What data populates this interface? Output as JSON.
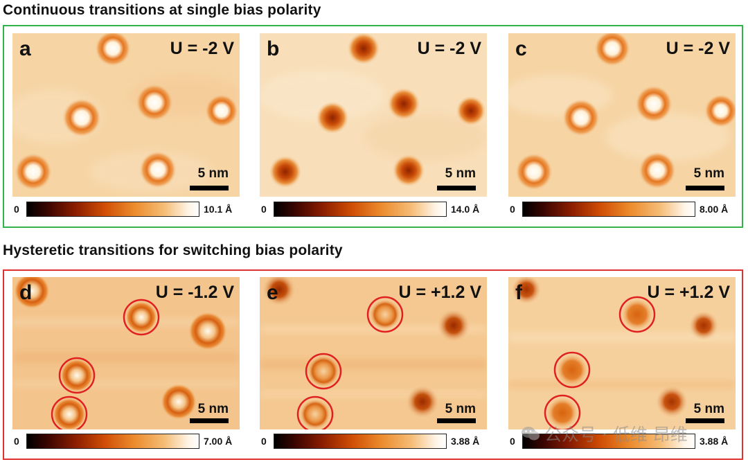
{
  "sections": [
    {
      "title": "Continuous transitions at single bias polarity",
      "frame_color": "#2fb34a"
    },
    {
      "title": "Hysteretic transitions for switching bias polarity",
      "frame_color": "#e03131"
    }
  ],
  "panels": [
    {
      "label": "a",
      "bias": "U = -2 V",
      "scale": "5 nm",
      "cbar_min": "0",
      "cbar_max": "10.1 Å"
    },
    {
      "label": "b",
      "bias": "U = -2 V",
      "scale": "5 nm",
      "cbar_min": "0",
      "cbar_max": "14.0 Å"
    },
    {
      "label": "c",
      "bias": "U = -2 V",
      "scale": "5 nm",
      "cbar_min": "0",
      "cbar_max": "8.00 Å"
    },
    {
      "label": "d",
      "bias": "U = -1.2 V",
      "scale": "5 nm",
      "cbar_min": "0",
      "cbar_max": "7.00 Å"
    },
    {
      "label": "e",
      "bias": "U = +1.2 V",
      "scale": "5 nm",
      "cbar_min": "0",
      "cbar_max": "3.88 Å"
    },
    {
      "label": "f",
      "bias": "U = +1.2 V",
      "scale": "5 nm",
      "cbar_min": "0",
      "cbar_max": "3.88 Å"
    }
  ],
  "watermark": "公众号 · 低维 昂维",
  "colors": {
    "highlight_circle": "#e02020",
    "colormap": [
      "#000000",
      "#8a1d00",
      "#cf4d05",
      "#ec8a2c",
      "#f5bd77",
      "#ffffff"
    ]
  }
}
